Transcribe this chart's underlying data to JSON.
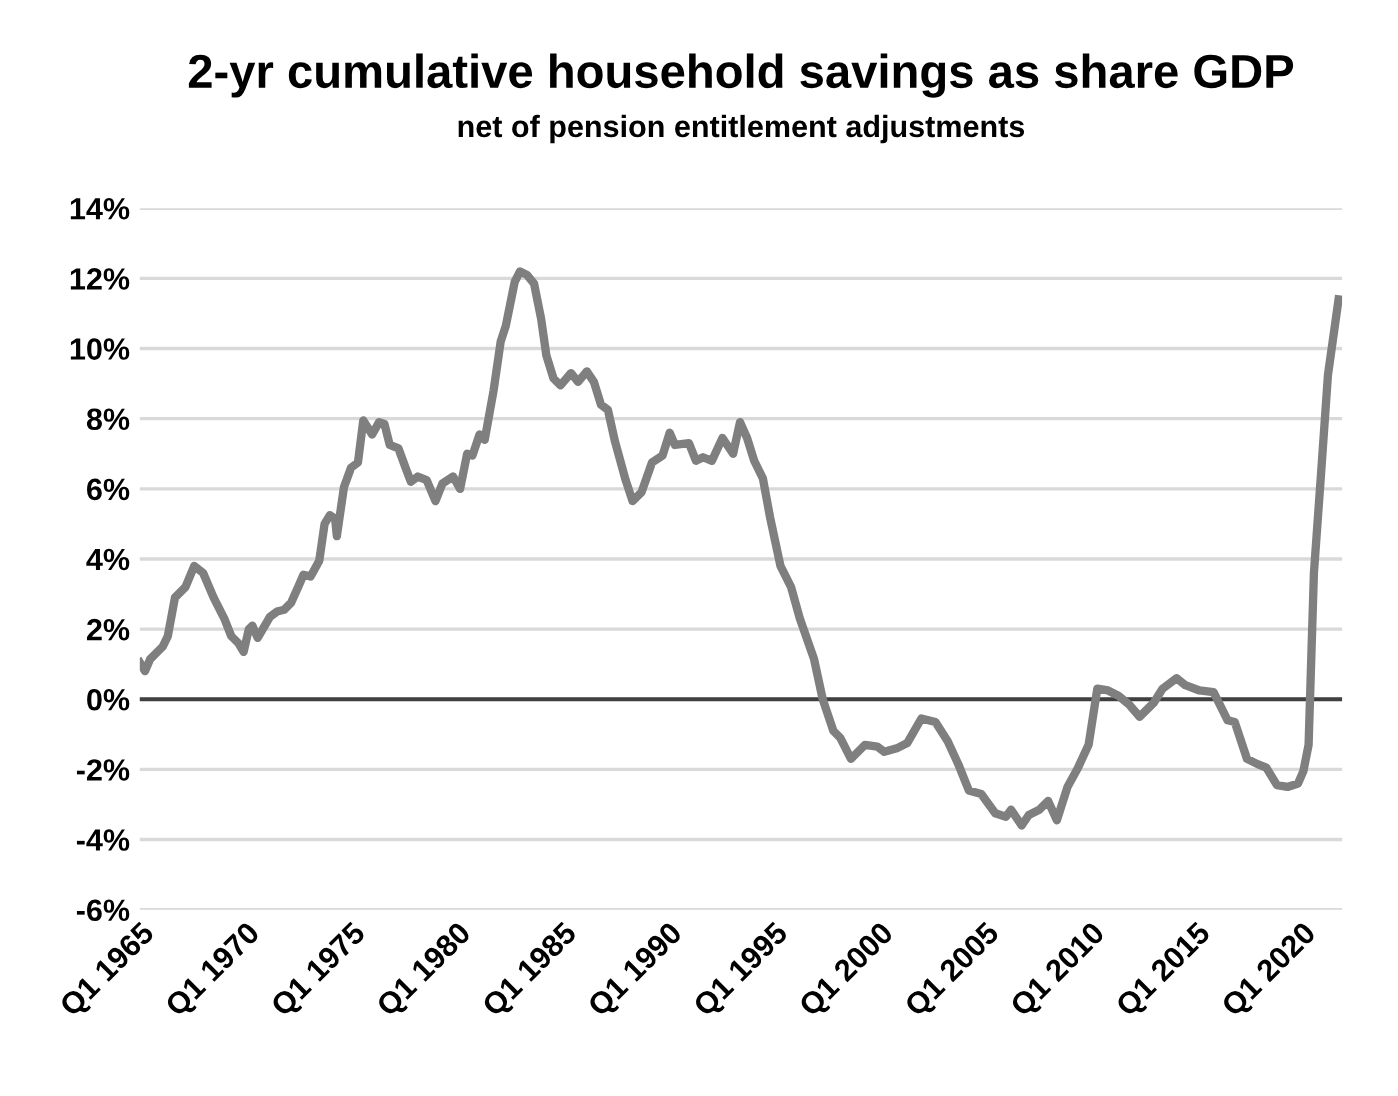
{
  "chart_data": {
    "type": "line",
    "title": "2-yr cumulative household savings as share GDP",
    "subtitle": "net of pension entitlement adjustments",
    "x": [
      "1965-01",
      "1965-04",
      "1965-07",
      "1966-02",
      "1966-05",
      "1966-09",
      "1967-01",
      "1967-03",
      "1967-08",
      "1968-01",
      "1968-07",
      "1969-01",
      "1969-05",
      "1969-09",
      "1969-12",
      "1970-03",
      "1970-05",
      "1970-08",
      "1971-03",
      "1971-07",
      "1971-11",
      "1972-03",
      "1972-07",
      "1972-10",
      "1973-02",
      "1973-07",
      "1973-10",
      "1974-01",
      "1974-04",
      "1974-05",
      "1974-09",
      "1975-01",
      "1975-05",
      "1975-08",
      "1976-01",
      "1976-05",
      "1976-08",
      "1976-11",
      "1977-04",
      "1977-08",
      "1977-11",
      "1978-03",
      "1978-08",
      "1979-01",
      "1979-05",
      "1979-11",
      "1980-03",
      "1980-07",
      "1980-10",
      "1981-02",
      "1981-05",
      "1981-10",
      "1982-02",
      "1982-05",
      "1982-10",
      "1983-01",
      "1983-05",
      "1983-09",
      "1984-01",
      "1984-04",
      "1984-08",
      "1984-12",
      "1985-06",
      "1985-10",
      "1986-03",
      "1986-07",
      "1986-11",
      "1987-03",
      "1987-07",
      "1988-01",
      "1988-05",
      "1988-10",
      "1989-04",
      "1989-10",
      "1990-02",
      "1990-05",
      "1991-01",
      "1991-05",
      "1991-09",
      "1992-02",
      "1992-08",
      "1993-02",
      "1993-06",
      "1993-10",
      "1994-02",
      "1994-07",
      "1994-11",
      "1995-05",
      "1995-11",
      "1996-04",
      "1996-12",
      "1997-05",
      "1997-11",
      "1998-03",
      "1998-09",
      "1999-05",
      "1999-12",
      "2000-04",
      "2000-11",
      "2001-05",
      "2002-01",
      "2002-09",
      "2003-04",
      "2003-10",
      "2004-04",
      "2004-11",
      "2005-07",
      "2006-01",
      "2006-04",
      "2006-10",
      "2007-02",
      "2007-08",
      "2008-01",
      "2008-06",
      "2008-12",
      "2009-06",
      "2009-12",
      "2010-05",
      "2010-11",
      "2011-05",
      "2011-11",
      "2012-05",
      "2013-01",
      "2013-06",
      "2014-02",
      "2014-07",
      "2015-03",
      "2015-11",
      "2016-07",
      "2016-11",
      "2017-06",
      "2017-12",
      "2018-05",
      "2018-11",
      "2019-05",
      "2019-11",
      "2020-02",
      "2020-05",
      "2020-08",
      "2020-12",
      "2021-04",
      "2021-10"
    ],
    "series": [
      {
        "color": "#7f7f7f",
        "values": [
          1.05,
          0.8,
          1.15,
          1.5,
          1.8,
          2.9,
          3.1,
          3.2,
          3.8,
          3.6,
          2.9,
          2.3,
          1.8,
          1.6,
          1.35,
          2.0,
          2.1,
          1.75,
          2.35,
          2.5,
          2.55,
          2.75,
          3.2,
          3.55,
          3.5,
          3.95,
          5.0,
          5.25,
          5.15,
          4.65,
          6.05,
          6.6,
          6.75,
          7.95,
          7.55,
          7.9,
          7.85,
          7.25,
          7.15,
          6.6,
          6.2,
          6.35,
          6.25,
          5.65,
          6.15,
          6.35,
          6.0,
          7.0,
          6.95,
          7.55,
          7.4,
          8.8,
          10.2,
          10.65,
          11.9,
          12.2,
          12.1,
          11.85,
          10.85,
          9.8,
          9.15,
          8.95,
          9.3,
          9.05,
          9.35,
          9.05,
          8.4,
          8.25,
          7.35,
          6.25,
          5.65,
          5.9,
          6.75,
          6.95,
          7.6,
          7.25,
          7.3,
          6.8,
          6.9,
          6.8,
          7.45,
          7.0,
          7.9,
          7.45,
          6.8,
          6.3,
          5.2,
          3.8,
          3.2,
          2.3,
          1.15,
          0.0,
          -0.9,
          -1.1,
          -1.7,
          -1.3,
          -1.35,
          -1.5,
          -1.4,
          -1.25,
          -0.55,
          -0.65,
          -1.2,
          -1.85,
          -2.6,
          -2.7,
          -3.25,
          -3.35,
          -3.15,
          -3.6,
          -3.3,
          -3.15,
          -2.9,
          -3.45,
          -2.5,
          -1.95,
          -1.3,
          0.3,
          0.25,
          0.1,
          -0.15,
          -0.5,
          -0.1,
          0.3,
          0.6,
          0.4,
          0.25,
          0.2,
          -0.6,
          -0.65,
          -1.7,
          -1.85,
          -1.95,
          -2.45,
          -2.5,
          -2.4,
          -2.05,
          -1.3,
          3.6,
          6.4,
          9.25,
          11.4
        ]
      }
    ],
    "xlim": [
      "1965-01",
      "2021-12"
    ],
    "xticks": [
      {
        "value": "1965-01",
        "label": "Q1 1965"
      },
      {
        "value": "1970-01",
        "label": "Q1 1970"
      },
      {
        "value": "1975-01",
        "label": "Q1 1975"
      },
      {
        "value": "1980-01",
        "label": "Q1 1980"
      },
      {
        "value": "1985-01",
        "label": "Q1 1985"
      },
      {
        "value": "1990-01",
        "label": "Q1 1990"
      },
      {
        "value": "1995-01",
        "label": "Q1 1995"
      },
      {
        "value": "2000-01",
        "label": "Q1 2000"
      },
      {
        "value": "2005-01",
        "label": "Q1 2005"
      },
      {
        "value": "2010-01",
        "label": "Q1 2010"
      },
      {
        "value": "2015-01",
        "label": "Q1 2015"
      },
      {
        "value": "2020-01",
        "label": "Q1 2020"
      }
    ],
    "ylim": [
      -6,
      14
    ],
    "yticks": [
      {
        "value": -6,
        "label": "-6%"
      },
      {
        "value": -4,
        "label": "-4%"
      },
      {
        "value": -2,
        "label": "-2%"
      },
      {
        "value": 0,
        "label": "0%"
      },
      {
        "value": 2,
        "label": "2%"
      },
      {
        "value": 4,
        "label": "4%"
      },
      {
        "value": 6,
        "label": "6%"
      },
      {
        "value": 8,
        "label": "8%"
      },
      {
        "value": 10,
        "label": "10%"
      },
      {
        "value": 12,
        "label": "12%"
      },
      {
        "value": 14,
        "label": "14%"
      }
    ],
    "ref_lines": [
      {
        "axis": "y",
        "value": 0,
        "color": "#404040"
      }
    ],
    "grid": "y",
    "legend": false,
    "marker": "none",
    "line_style": "solid"
  }
}
